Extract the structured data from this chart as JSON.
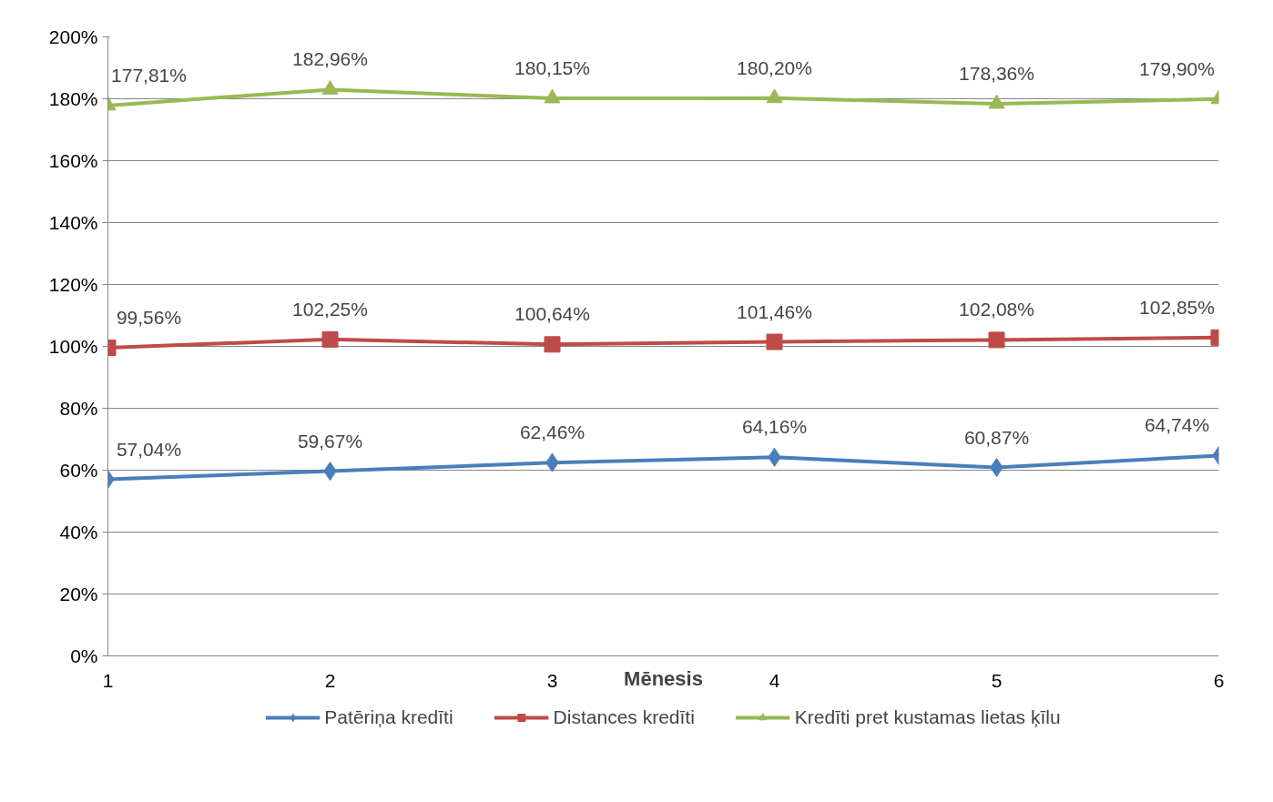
{
  "chart_data": {
    "type": "line",
    "xlabel": "Mēnesis",
    "categories": [
      "1",
      "2",
      "3",
      "4",
      "5",
      "6"
    ],
    "ylim": [
      0,
      200
    ],
    "yticks": [
      {
        "value": 0,
        "label": "0%"
      },
      {
        "value": 20,
        "label": "20%"
      },
      {
        "value": 40,
        "label": "40%"
      },
      {
        "value": 60,
        "label": "60%"
      },
      {
        "value": 80,
        "label": "80%"
      },
      {
        "value": 100,
        "label": "100%"
      },
      {
        "value": 120,
        "label": "120%"
      },
      {
        "value": 140,
        "label": "140%"
      },
      {
        "value": 160,
        "label": "160%"
      },
      {
        "value": 180,
        "label": "180%"
      },
      {
        "value": 200,
        "label": "200%"
      }
    ],
    "grid": "y",
    "legend": "bottom",
    "series": [
      {
        "name": "Patēriņa kredīti",
        "color": "#4a7ebb",
        "marker": "diamond",
        "values": [
          57.04,
          59.67,
          62.46,
          64.16,
          60.87,
          64.74
        ],
        "value_labels": [
          "57,04%",
          "59,67%",
          "62,46%",
          "64,16%",
          "60,87%",
          "64,74%"
        ]
      },
      {
        "name": "Distances kredīti",
        "color": "#be4b48",
        "marker": "square",
        "values": [
          99.56,
          102.25,
          100.64,
          101.46,
          102.08,
          102.85
        ],
        "value_labels": [
          "99,56%",
          "102,25%",
          "100,64%",
          "101,46%",
          "102,08%",
          "102,85%"
        ]
      },
      {
        "name": "Kredīti pret kustamas lietas ķīlu",
        "color": "#98b954",
        "marker": "triangle",
        "values": [
          177.81,
          182.96,
          180.15,
          180.2,
          178.36,
          179.9
        ],
        "value_labels": [
          "177,81%",
          "182,96%",
          "180,15%",
          "180,20%",
          "178,36%",
          "179,90%"
        ]
      }
    ]
  }
}
